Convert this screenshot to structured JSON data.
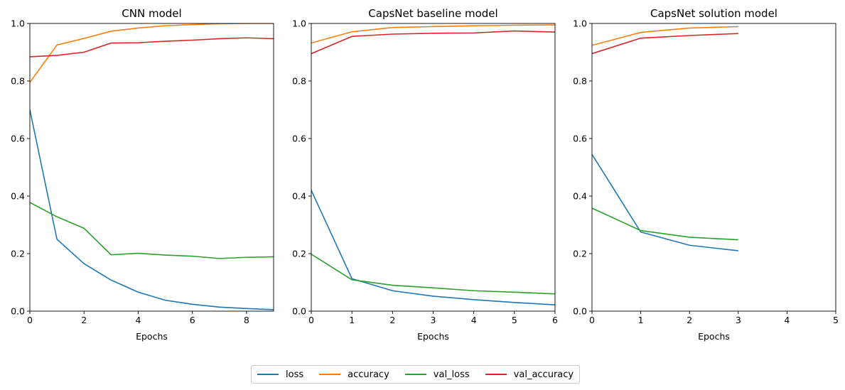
{
  "chart_data": [
    {
      "type": "line",
      "title": "CNN model",
      "xlabel": "Epochs",
      "ylabel": "",
      "xlim": [
        0,
        9
      ],
      "ylim": [
        0,
        1.0
      ],
      "xticks": [
        0,
        2,
        4,
        6,
        8
      ],
      "yticks": [
        0.0,
        0.2,
        0.4,
        0.6,
        0.8,
        1.0
      ],
      "ytick_labels": [
        "0.0",
        "0.2",
        "0.4",
        "0.6",
        "0.8",
        "1.0"
      ],
      "grid": false,
      "x": [
        0,
        1,
        2,
        3,
        4,
        5,
        6,
        7,
        8,
        9
      ],
      "series": [
        {
          "name": "loss",
          "color": "#1f77b4",
          "values": [
            0.7,
            0.25,
            0.165,
            0.108,
            0.066,
            0.038,
            0.024,
            0.014,
            0.009,
            0.005
          ]
        },
        {
          "name": "accuracy",
          "color": "#ff7f0e",
          "values": [
            0.795,
            0.925,
            0.948,
            0.973,
            0.984,
            0.992,
            0.996,
            0.999,
            1.0,
            1.0
          ]
        },
        {
          "name": "val_loss",
          "color": "#2ca02c",
          "values": [
            0.378,
            0.328,
            0.288,
            0.196,
            0.201,
            0.195,
            0.191,
            0.183,
            0.187,
            0.189
          ]
        },
        {
          "name": "val_accuracy",
          "color": "#d62728",
          "values": [
            0.884,
            0.889,
            0.9,
            0.932,
            0.933,
            0.938,
            0.942,
            0.947,
            0.95,
            0.947
          ]
        }
      ]
    },
    {
      "type": "line",
      "title": "CapsNet baseline model",
      "xlabel": "Epochs",
      "ylabel": "",
      "xlim": [
        0,
        6
      ],
      "ylim": [
        0,
        1.0
      ],
      "xticks": [
        0,
        1,
        2,
        3,
        4,
        5,
        6
      ],
      "yticks": [
        0.0,
        0.2,
        0.4,
        0.6,
        0.8,
        1.0
      ],
      "ytick_labels": [
        "0.0",
        "0.2",
        "0.4",
        "0.6",
        "0.8",
        "1.0"
      ],
      "grid": false,
      "x": [
        0,
        1,
        2,
        3,
        4,
        5,
        6
      ],
      "series": [
        {
          "name": "loss",
          "color": "#1f77b4",
          "values": [
            0.42,
            0.113,
            0.071,
            0.052,
            0.04,
            0.03,
            0.022
          ]
        },
        {
          "name": "accuracy",
          "color": "#ff7f0e",
          "values": [
            0.932,
            0.971,
            0.986,
            0.989,
            0.992,
            0.994,
            0.995
          ]
        },
        {
          "name": "val_loss",
          "color": "#2ca02c",
          "values": [
            0.198,
            0.109,
            0.09,
            0.081,
            0.071,
            0.066,
            0.06
          ]
        },
        {
          "name": "val_accuracy",
          "color": "#d62728",
          "values": [
            0.895,
            0.955,
            0.963,
            0.966,
            0.967,
            0.974,
            0.97
          ]
        }
      ]
    },
    {
      "type": "line",
      "title": "CapsNet solution model",
      "xlabel": "Epochs",
      "ylabel": "",
      "xlim": [
        0,
        5
      ],
      "ylim": [
        0,
        1.0
      ],
      "xticks": [
        0,
        1,
        2,
        3,
        4,
        5
      ],
      "yticks": [
        0.0,
        0.2,
        0.4,
        0.6,
        0.8,
        1.0
      ],
      "ytick_labels": [
        "0.0",
        "0.2",
        "0.4",
        "0.6",
        "0.8",
        "1.0"
      ],
      "grid": false,
      "x": [
        0,
        1,
        2,
        3
      ],
      "series": [
        {
          "name": "loss",
          "color": "#1f77b4",
          "values": [
            0.545,
            0.275,
            0.229,
            0.21
          ]
        },
        {
          "name": "accuracy",
          "color": "#ff7f0e",
          "values": [
            0.924,
            0.969,
            0.984,
            0.989
          ]
        },
        {
          "name": "val_loss",
          "color": "#2ca02c",
          "values": [
            0.358,
            0.28,
            0.257,
            0.248
          ]
        },
        {
          "name": "val_accuracy",
          "color": "#d62728",
          "values": [
            0.895,
            0.949,
            0.958,
            0.965
          ]
        }
      ]
    }
  ],
  "legend": {
    "placement": "bottom-center",
    "entries": [
      {
        "label": "loss",
        "color": "#1f77b4"
      },
      {
        "label": "accuracy",
        "color": "#ff7f0e"
      },
      {
        "label": "val_loss",
        "color": "#2ca02c"
      },
      {
        "label": "val_accuracy",
        "color": "#d62728"
      }
    ]
  }
}
